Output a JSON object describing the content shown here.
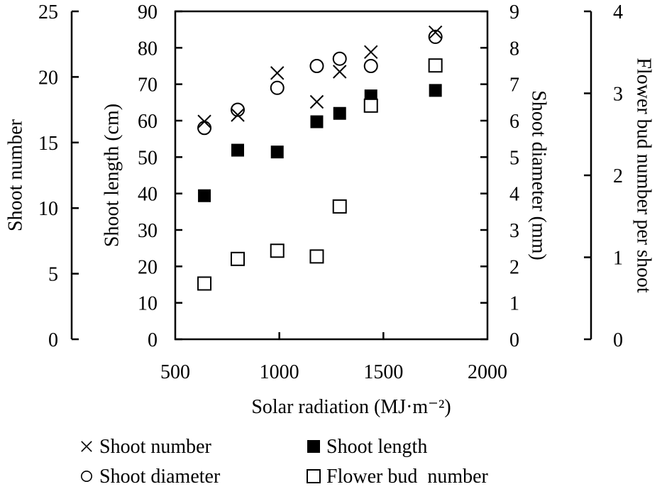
{
  "chart_data": {
    "type": "scatter",
    "xlabel": "Solar radiation (MJ·m⁻²)",
    "xlim": [
      500,
      2000
    ],
    "xticks": [
      "500",
      "1000",
      "1500",
      "2000"
    ],
    "axes": [
      {
        "id": "shoot_number",
        "label": "Shoot number",
        "ylim": [
          0,
          25
        ],
        "ticks": [
          "0",
          "5",
          "10",
          "15",
          "20",
          "25"
        ],
        "position": "far-left"
      },
      {
        "id": "shoot_length",
        "label": "Shoot length (cm)",
        "ylim": [
          0,
          90
        ],
        "ticks": [
          "0",
          "10",
          "20",
          "30",
          "40",
          "50",
          "60",
          "70",
          "80",
          "90"
        ],
        "position": "left"
      },
      {
        "id": "shoot_diameter",
        "label": "Shoot diameter (mm)",
        "ylim": [
          0,
          9
        ],
        "ticks": [
          "0",
          "1",
          "2",
          "3",
          "4",
          "5",
          "6",
          "7",
          "8",
          "9"
        ],
        "position": "right"
      },
      {
        "id": "flower_bud",
        "label": "Flower bud  number per shoot",
        "ylim": [
          0,
          4
        ],
        "ticks": [
          "0",
          "1",
          "2",
          "3",
          "4"
        ],
        "position": "far-right"
      }
    ],
    "x": [
      640,
      800,
      990,
      1180,
      1290,
      1440,
      1750
    ],
    "series": [
      {
        "name": "Shoot number",
        "axis": "shoot_number",
        "marker": "cross",
        "values": [
          16.6,
          17.1,
          20.3,
          18.1,
          20.4,
          21.9,
          23.4
        ]
      },
      {
        "name": "Shoot length",
        "axis": "shoot_length",
        "marker": "filled-square",
        "values": [
          39.4,
          51.9,
          51.4,
          59.7,
          62.0,
          66.8,
          68.3
        ]
      },
      {
        "name": "Shoot diameter",
        "axis": "shoot_diameter",
        "marker": "circle",
        "values": [
          5.8,
          6.3,
          6.9,
          7.5,
          7.7,
          7.5,
          8.3
        ]
      },
      {
        "name": "Flower bud  number",
        "axis": "flower_bud",
        "marker": "open-square",
        "values": [
          0.68,
          0.98,
          1.08,
          1.01,
          1.62,
          2.85,
          3.34
        ]
      }
    ],
    "legend_position": "bottom",
    "grid": false
  }
}
